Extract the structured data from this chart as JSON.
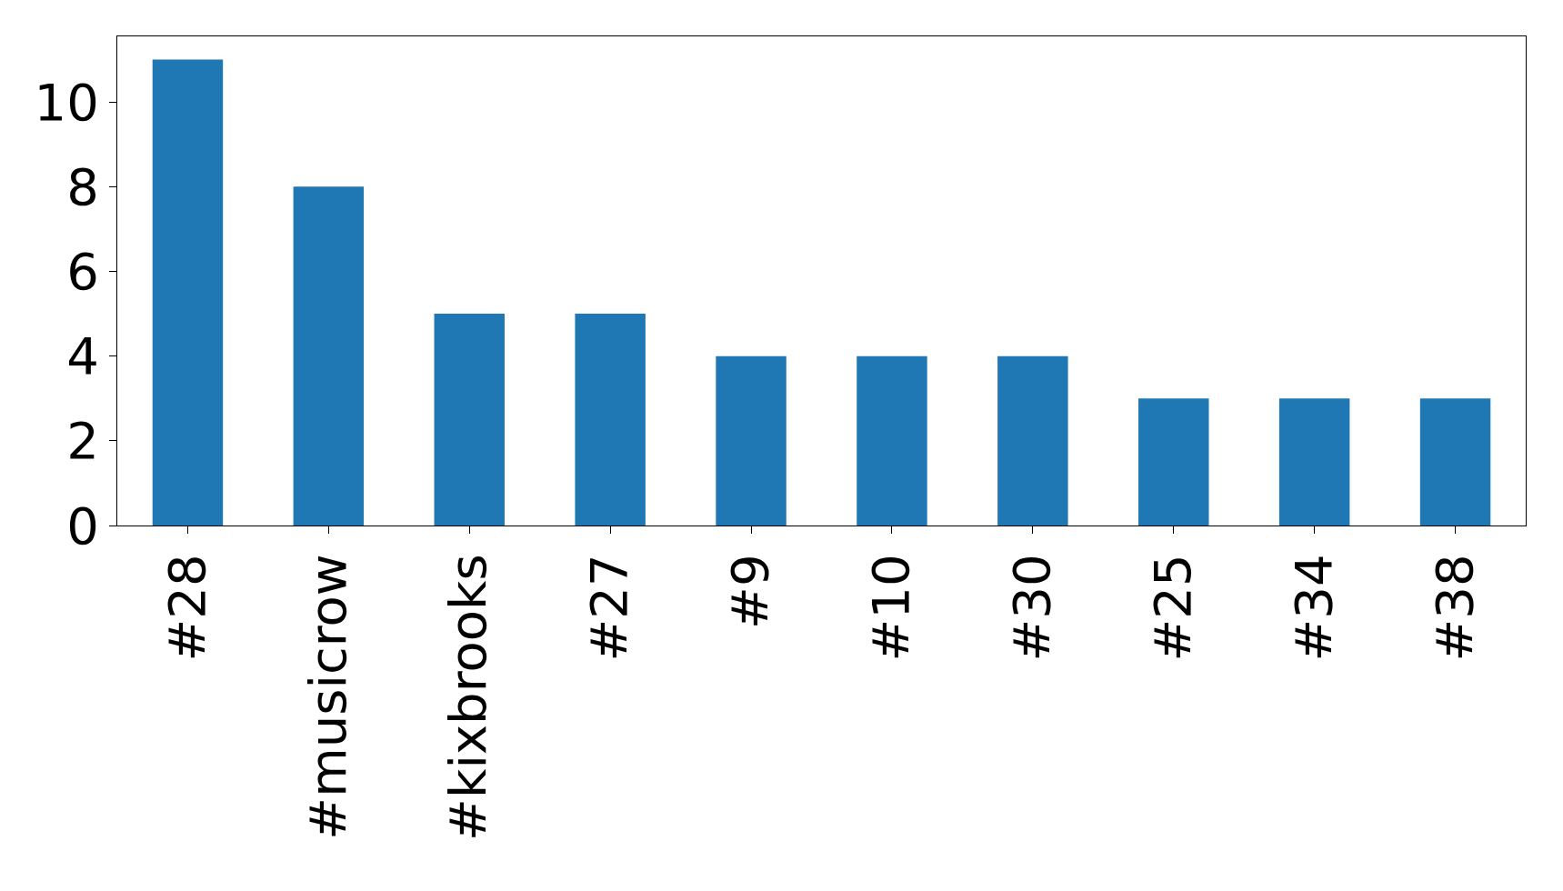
{
  "chart_data": {
    "type": "bar",
    "categories": [
      "#28",
      "#musicrow",
      "#kixbrooks",
      "#27",
      "#9",
      "#10",
      "#30",
      "#25",
      "#34",
      "#38"
    ],
    "values": [
      11,
      8,
      5,
      5,
      4,
      4,
      4,
      3,
      3,
      3
    ],
    "color": "#1f77b4",
    "ylim": [
      0,
      11.55
    ],
    "yticks": [
      0,
      2,
      4,
      6,
      8,
      10
    ]
  }
}
